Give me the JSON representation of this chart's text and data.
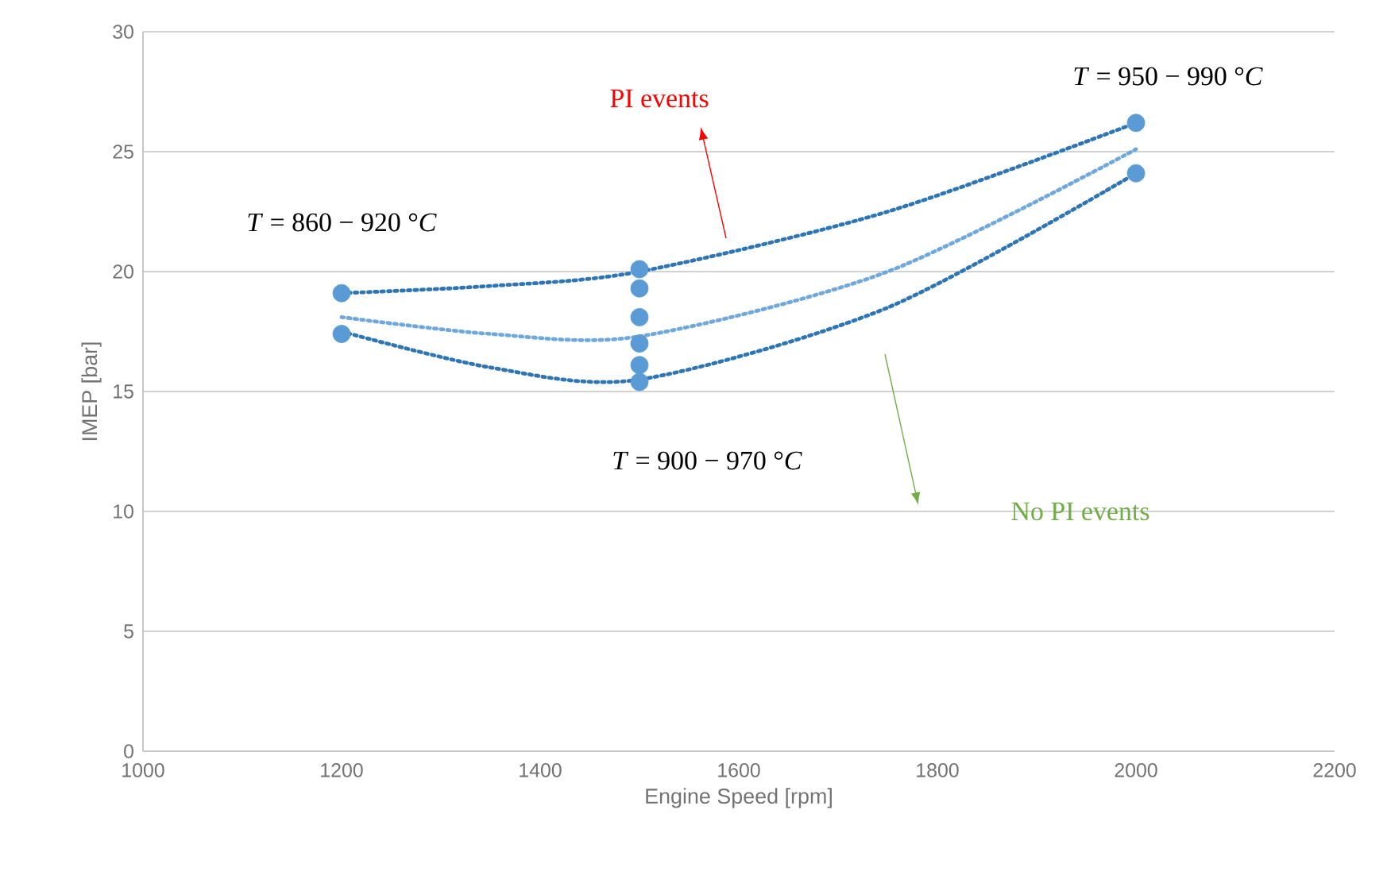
{
  "chart_data": {
    "type": "scatter",
    "xlabel": "Engine Speed [rpm]",
    "ylabel": "IMEP [bar]",
    "xlim": [
      1000,
      2200
    ],
    "ylim": [
      0,
      30
    ],
    "xticks": [
      1000,
      1200,
      1400,
      1600,
      1800,
      2000,
      2200
    ],
    "yticks": [
      0,
      5,
      10,
      15,
      20,
      25,
      30
    ],
    "grid": "y",
    "series": [
      {
        "color": "#5b9bd5",
        "marker": "circle",
        "x": [
          1200,
          1200,
          1500,
          1500,
          1500,
          1500,
          1500,
          1500,
          2000,
          2000
        ],
        "values": [
          19.1,
          17.4,
          20.1,
          19.3,
          18.1,
          17.0,
          16.1,
          15.4,
          26.2,
          24.1
        ]
      },
      {
        "type": "line",
        "color": "#2e75b6",
        "line_style": "dotted",
        "marker": "none",
        "x": [
          1200,
          1350,
          1500,
          1750,
          2000
        ],
        "values": [
          19.1,
          19.4,
          20.0,
          22.5,
          26.2
        ]
      },
      {
        "type": "line",
        "color": "#6fa8dc",
        "line_style": "dotted",
        "marker": "none",
        "x": [
          1200,
          1350,
          1500,
          1750,
          2000
        ],
        "values": [
          18.1,
          17.4,
          17.3,
          20.0,
          25.1
        ]
      },
      {
        "type": "line",
        "color": "#2e75b6",
        "line_style": "dotted",
        "marker": "none",
        "x": [
          1200,
          1350,
          1500,
          1750,
          2000
        ],
        "values": [
          17.5,
          16.0,
          15.5,
          18.5,
          24.1
        ]
      }
    ],
    "annotations": [
      "*T* = 860 − 920 °*C*",
      "PI events",
      "*T* = 950 − 990 °*C*",
      "*T* = 900 − 970 °*C*",
      "No PI events"
    ]
  }
}
